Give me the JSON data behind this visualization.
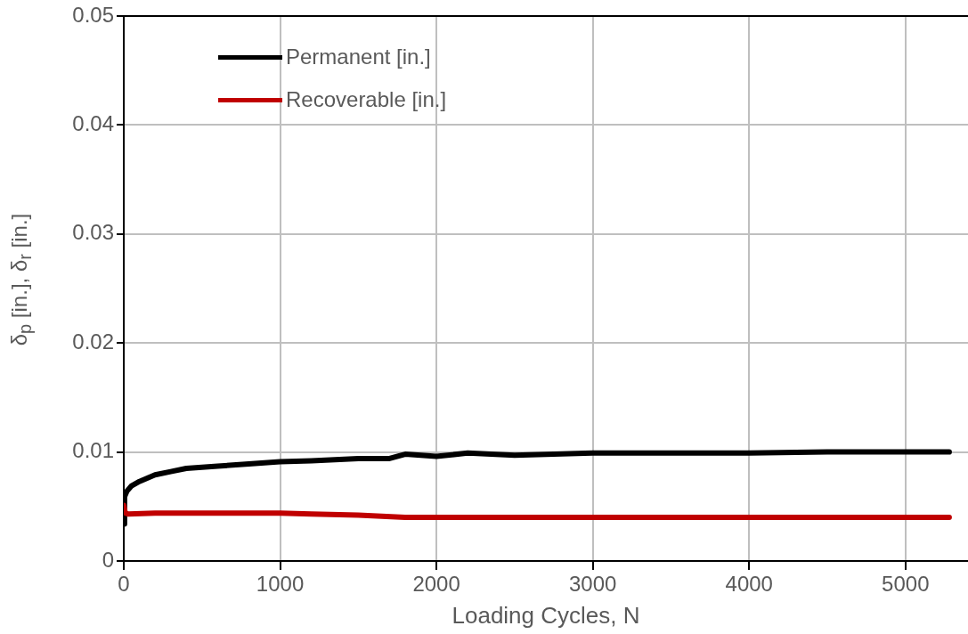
{
  "chart_data": {
    "type": "line",
    "xlabel": "Loading Cycles, N",
    "ylabel": "δ$_{p}$ [in.], δ$_{r}$ [in.]",
    "xlim": [
      0,
      5400
    ],
    "xticks": [
      0,
      1000,
      2000,
      3000,
      4000,
      5000
    ],
    "ylim": [
      0,
      0.05
    ],
    "yticks": [
      0,
      0.01,
      0.02,
      0.03,
      0.04,
      0.05
    ],
    "grid": true,
    "legend": "top left",
    "marker": "none",
    "line_style": "solid",
    "series": [
      {
        "name": "Permanent [in.]",
        "color": "#000000",
        "x": [
          0,
          5,
          20,
          50,
          100,
          200,
          300,
          400,
          600,
          800,
          1000,
          1200,
          1500,
          1700,
          1800,
          2000,
          2200,
          2500,
          3000,
          3500,
          4000,
          4500,
          5000,
          5280
        ],
        "values": [
          0.0034,
          0.0059,
          0.0064,
          0.0069,
          0.0073,
          0.0079,
          0.0082,
          0.0085,
          0.0087,
          0.0089,
          0.0091,
          0.0092,
          0.0094,
          0.0094,
          0.0098,
          0.0096,
          0.0099,
          0.0097,
          0.0099,
          0.0099,
          0.0099,
          0.01,
          0.01,
          0.01
        ]
      },
      {
        "name": "Recoverable [in.]",
        "color": "#c00000",
        "x": [
          0,
          10,
          30,
          200,
          600,
          1000,
          1200,
          1500,
          1800,
          2500,
          3000,
          4000,
          5000,
          5280
        ],
        "values": [
          0.0051,
          0.0044,
          0.0043,
          0.0044,
          0.0044,
          0.0044,
          0.0043,
          0.0042,
          0.004,
          0.004,
          0.004,
          0.004,
          0.004,
          0.004
        ]
      }
    ]
  }
}
